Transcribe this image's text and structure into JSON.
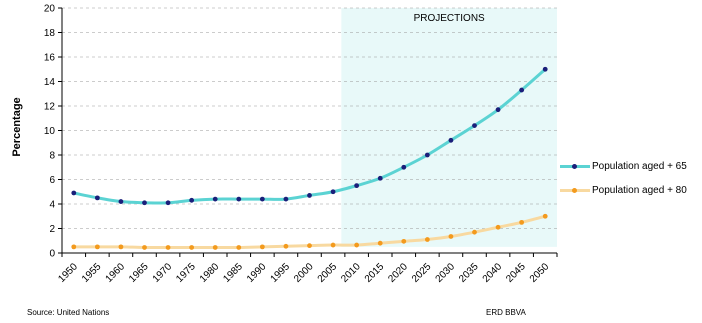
{
  "chart_data": {
    "type": "line",
    "ylabel": "Percentage",
    "ylim": [
      0,
      20
    ],
    "yticks": [
      0,
      2,
      4,
      6,
      8,
      10,
      12,
      14,
      16,
      18,
      20
    ],
    "x": [
      "1950",
      "1955",
      "1960",
      "1965",
      "1970",
      "1975",
      "1980",
      "1985",
      "1990",
      "1995",
      "2000",
      "2005",
      "2010",
      "2015",
      "2020",
      "2025",
      "2030",
      "2035",
      "2040",
      "2045",
      "2050"
    ],
    "projection_label": "PROJECTIONS",
    "projection_start": "2010",
    "projection_color": "#e8f9f9",
    "series": [
      {
        "name": "Population aged + 65",
        "line_color": "#5bd3d3",
        "marker_color": "#1a1f7a",
        "values": [
          4.9,
          4.5,
          4.2,
          4.1,
          4.1,
          4.3,
          4.4,
          4.4,
          4.4,
          4.4,
          4.7,
          5.0,
          5.5,
          6.1,
          7.0,
          8.0,
          9.2,
          10.4,
          11.7,
          13.3,
          15.0
        ]
      },
      {
        "name": "Population aged + 80",
        "line_color": "#f8d9a0",
        "marker_color": "#f39a1d",
        "values": [
          0.5,
          0.5,
          0.5,
          0.45,
          0.45,
          0.45,
          0.45,
          0.45,
          0.5,
          0.55,
          0.6,
          0.65,
          0.65,
          0.8,
          0.95,
          1.1,
          1.35,
          1.7,
          2.1,
          2.5,
          3.0
        ]
      }
    ]
  },
  "footer": {
    "source": "Source: United Nations",
    "credit": "ERD BBVA"
  }
}
